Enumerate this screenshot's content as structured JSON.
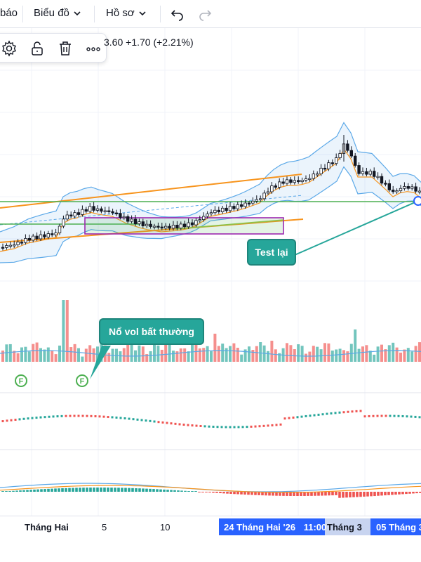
{
  "toolbar": {
    "partial_item": "báo",
    "chart_menu": "Biểu đồ",
    "profile_menu": "Hồ sơ",
    "undo_icon": "undo-icon",
    "redo_icon": "redo-icon"
  },
  "drawing_toolbar": {
    "icons": [
      "gear-icon",
      "unlock-icon",
      "trash-icon",
      "more-icon"
    ]
  },
  "price_readout": {
    "partial_value": "3.60",
    "change": "+1.70",
    "change_pct": "(+2.21%)"
  },
  "annotations": {
    "test_label": "Test lại",
    "vol_label": "Nổ vol bất thường",
    "event_marker": "F"
  },
  "time_axis": {
    "labels": [
      "Tháng Hai",
      "5",
      "10",
      "Tháng 3"
    ],
    "cursor_date": "24 Tháng Hai '26",
    "cursor_time": "11:00",
    "range_end_label": "05 Tháng 3"
  },
  "colors": {
    "up": "#26a69a",
    "down": "#ef5350",
    "bollinger": "#5aa8e8",
    "trend_orange": "#f7941d",
    "support_green": "#4caf50",
    "rectangle": "#9c27b0",
    "axis_highlight": "#2962ff"
  }
}
